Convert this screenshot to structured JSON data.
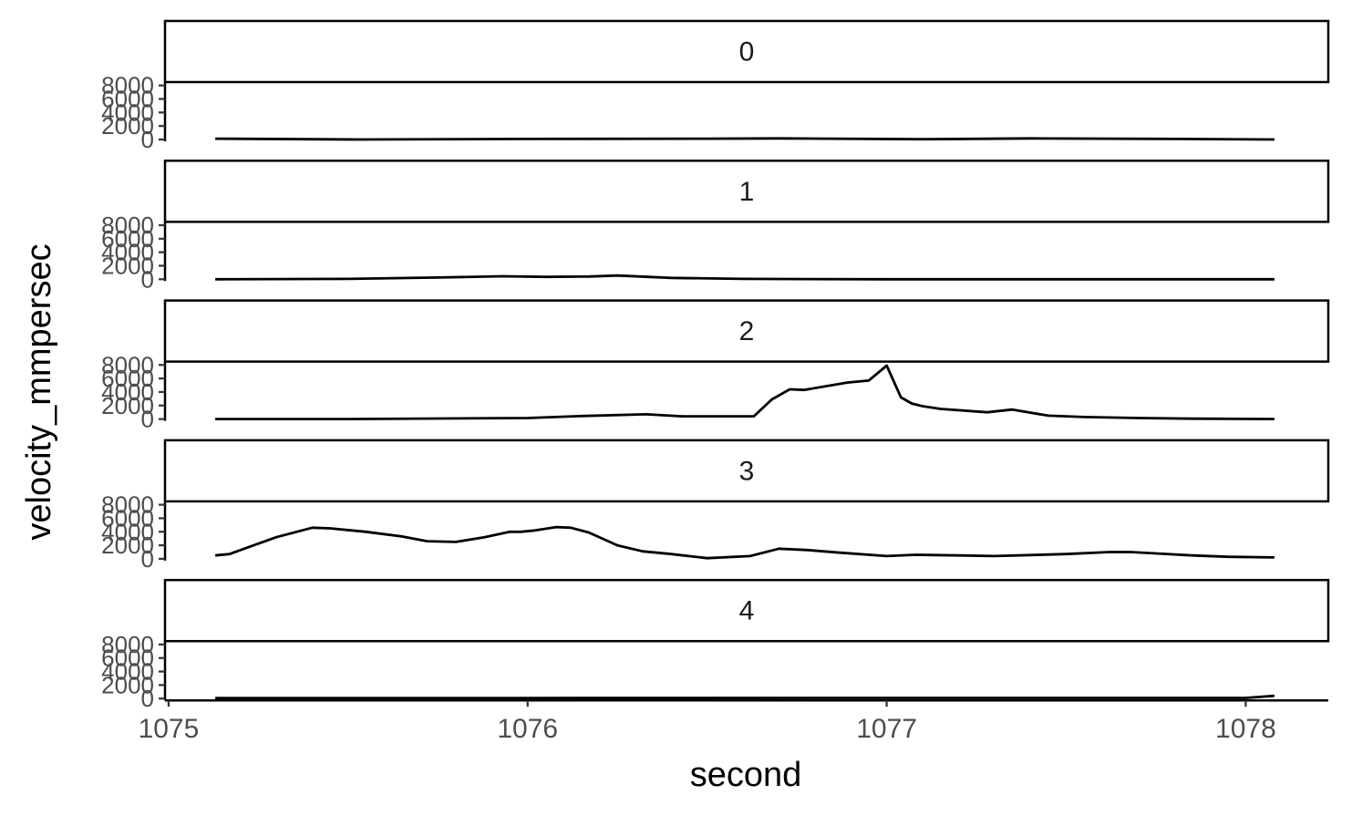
{
  "chart_data": {
    "type": "line",
    "xlabel": "second",
    "ylabel": "velocity_mmpersec",
    "xlim": [
      1074.99,
      1078.23
    ],
    "ylim": [
      0,
      8500
    ],
    "x_ticks": [
      1075,
      1076,
      1077,
      1078
    ],
    "x_tick_labels": [
      "1075",
      "1076",
      "1077",
      "1078"
    ],
    "y_ticks": [
      0,
      2000,
      4000,
      6000,
      8000
    ],
    "y_tick_labels": [
      "0",
      "2000",
      "4000",
      "6000",
      "8000"
    ],
    "grid": false,
    "legend": "none",
    "line_color": "#000000",
    "facets": [
      {
        "label": "0",
        "x": [
          1075.13,
          1075.53,
          1076.0,
          1076.5,
          1076.7,
          1077.1,
          1077.4,
          1077.8,
          1078.08
        ],
        "y": [
          120,
          0,
          80,
          120,
          160,
          40,
          160,
          80,
          0
        ]
      },
      {
        "label": "1",
        "x": [
          1075.13,
          1075.5,
          1075.75,
          1075.93,
          1076.05,
          1076.17,
          1076.25,
          1076.4,
          1076.6,
          1077.0,
          1077.5,
          1078.08
        ],
        "y": [
          0,
          50,
          250,
          450,
          350,
          400,
          550,
          200,
          50,
          0,
          0,
          0
        ]
      },
      {
        "label": "2",
        "x": [
          1075.13,
          1075.5,
          1076.0,
          1076.15,
          1076.33,
          1076.43,
          1076.63,
          1076.68,
          1076.73,
          1076.77,
          1076.89,
          1076.95,
          1077.0,
          1077.04,
          1077.07,
          1077.1,
          1077.15,
          1077.28,
          1077.35,
          1077.45,
          1077.55,
          1077.7,
          1077.85,
          1078.08
        ],
        "y": [
          0,
          0,
          150,
          450,
          700,
          400,
          400,
          2900,
          4400,
          4300,
          5400,
          5700,
          7900,
          3200,
          2300,
          1900,
          1500,
          1000,
          1400,
          500,
          300,
          150,
          50,
          0
        ]
      },
      {
        "label": "3",
        "x": [
          1075.13,
          1075.17,
          1075.2,
          1075.3,
          1075.4,
          1075.45,
          1075.55,
          1075.65,
          1075.72,
          1075.8,
          1075.88,
          1075.95,
          1075.98,
          1076.02,
          1076.08,
          1076.12,
          1076.17,
          1076.25,
          1076.32,
          1076.4,
          1076.5,
          1076.62,
          1076.7,
          1076.78,
          1076.87,
          1077.0,
          1077.08,
          1077.2,
          1077.3,
          1077.5,
          1077.62,
          1077.68,
          1077.75,
          1077.85,
          1077.95,
          1078.08
        ],
        "y": [
          500,
          700,
          1300,
          3200,
          4600,
          4500,
          4000,
          3300,
          2600,
          2500,
          3200,
          4000,
          4000,
          4200,
          4700,
          4600,
          3900,
          2000,
          1100,
          700,
          100,
          400,
          1500,
          1300,
          900,
          400,
          600,
          500,
          400,
          700,
          1000,
          1000,
          800,
          500,
          300,
          200
        ]
      },
      {
        "label": "4",
        "x": [
          1075.13,
          1076.0,
          1077.0,
          1078.0,
          1078.08
        ],
        "y": [
          80,
          80,
          100,
          100,
          400
        ]
      }
    ]
  }
}
